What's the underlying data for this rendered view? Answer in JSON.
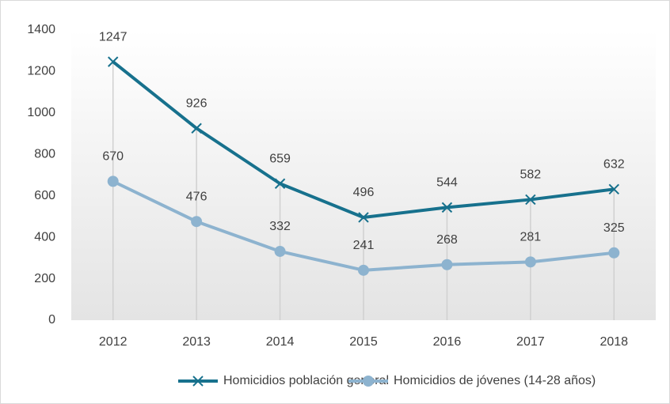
{
  "chart_data": {
    "type": "line",
    "categories": [
      "2012",
      "2013",
      "2014",
      "2015",
      "2016",
      "2017",
      "2018"
    ],
    "series": [
      {
        "name": "Homicidios población general",
        "color": "#17718d",
        "marker": "x",
        "values": [
          1247,
          926,
          659,
          496,
          544,
          582,
          632
        ]
      },
      {
        "name": "Homicidios de jóvenes (14-28 años)",
        "color": "#8db3cf",
        "marker": "circle",
        "values": [
          670,
          476,
          332,
          241,
          268,
          281,
          325
        ]
      }
    ],
    "ylim": [
      0,
      1400
    ],
    "yticks": [
      0,
      200,
      400,
      600,
      800,
      1000,
      1200,
      1400
    ],
    "drop_lines": true,
    "data_labels": true,
    "legend": "bottom"
  }
}
